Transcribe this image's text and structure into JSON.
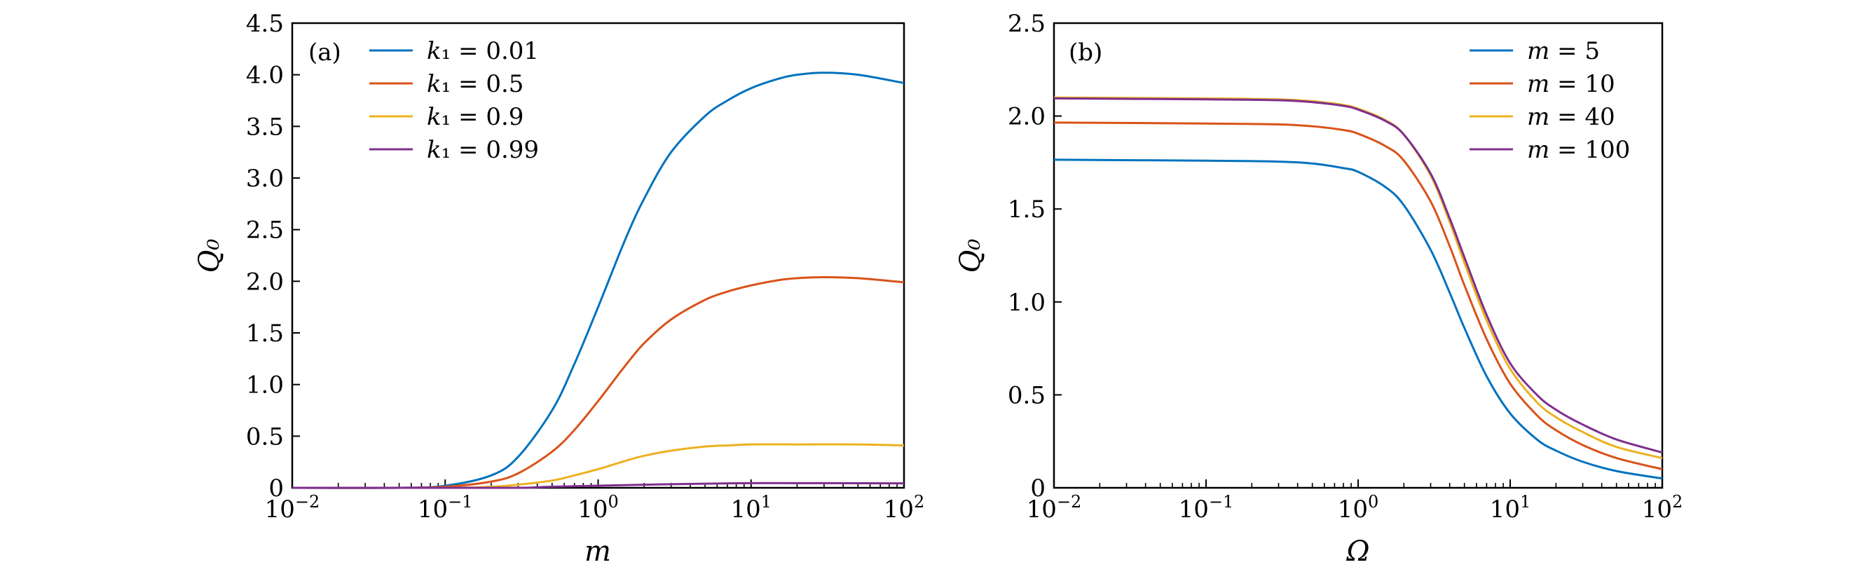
{
  "chart_data": [
    {
      "type": "line",
      "panel_tag": "(a)",
      "xscale": "log",
      "xlim": [
        0.01,
        100
      ],
      "ylim": [
        0,
        4.5
      ],
      "xlabel": "m",
      "ylabel": "Q₀",
      "x_ticks": [
        0.01,
        0.1,
        1,
        10,
        100
      ],
      "x_tick_labels": [
        {
          "base": "10",
          "exp": "−2"
        },
        {
          "base": "10",
          "exp": "−1"
        },
        {
          "base": "10",
          "exp": "0"
        },
        {
          "base": "10",
          "exp": "1"
        },
        {
          "base": "10",
          "exp": "2"
        }
      ],
      "y_ticks": [
        0,
        0.5,
        1.0,
        1.5,
        2.0,
        2.5,
        3.0,
        3.5,
        4.0,
        4.5
      ],
      "y_tick_labels": [
        "0",
        "0.5",
        "1.0",
        "1.5",
        "2.0",
        "2.5",
        "3.0",
        "3.5",
        "4.0",
        "4.5"
      ],
      "legend_position": "top-left",
      "series": [
        {
          "name": "k₁ = 0.01",
          "color": "#0072bd",
          "x": [
            0.01,
            0.05,
            0.1,
            0.2,
            0.3,
            0.5,
            0.7,
            1,
            1.5,
            2,
            3,
            5,
            7,
            10,
            15,
            20,
            30,
            50,
            100
          ],
          "y": [
            0.0,
            0.0,
            0.02,
            0.12,
            0.3,
            0.75,
            1.2,
            1.75,
            2.4,
            2.8,
            3.25,
            3.6,
            3.75,
            3.87,
            3.96,
            4.0,
            4.02,
            4.0,
            3.92
          ]
        },
        {
          "name": "k₁ = 0.5",
          "color": "#d95319",
          "x": [
            0.01,
            0.05,
            0.1,
            0.2,
            0.3,
            0.5,
            0.7,
            1,
            1.5,
            2,
            3,
            5,
            7,
            10,
            15,
            20,
            30,
            50,
            100
          ],
          "y": [
            0.0,
            0.0,
            0.01,
            0.06,
            0.14,
            0.35,
            0.56,
            0.84,
            1.18,
            1.4,
            1.63,
            1.82,
            1.9,
            1.96,
            2.01,
            2.03,
            2.04,
            2.03,
            1.99
          ]
        },
        {
          "name": "k₁ = 0.9",
          "color": "#edb120",
          "x": [
            0.01,
            0.1,
            0.2,
            0.3,
            0.5,
            0.7,
            1,
            1.5,
            2,
            3,
            5,
            7,
            10,
            20,
            50,
            100
          ],
          "y": [
            0.0,
            0.0,
            0.01,
            0.03,
            0.07,
            0.12,
            0.18,
            0.26,
            0.31,
            0.36,
            0.4,
            0.41,
            0.42,
            0.42,
            0.42,
            0.41
          ]
        },
        {
          "name": "k₁ = 0.99",
          "color": "#7e2f8e",
          "x": [
            0.01,
            0.1,
            0.3,
            0.5,
            1,
            2,
            3,
            5,
            10,
            20,
            50,
            100
          ],
          "y": [
            0.0,
            0.0,
            0.0,
            0.01,
            0.02,
            0.03,
            0.035,
            0.04,
            0.045,
            0.045,
            0.044,
            0.043
          ]
        }
      ]
    },
    {
      "type": "line",
      "panel_tag": "(b)",
      "xscale": "log",
      "xlim": [
        0.01,
        100
      ],
      "ylim": [
        0,
        2.5
      ],
      "xlabel": "Ω",
      "ylabel": "Q₀",
      "x_ticks": [
        0.01,
        0.1,
        1,
        10,
        100
      ],
      "x_tick_labels": [
        {
          "base": "10",
          "exp": "−2"
        },
        {
          "base": "10",
          "exp": "−1"
        },
        {
          "base": "10",
          "exp": "0"
        },
        {
          "base": "10",
          "exp": "1"
        },
        {
          "base": "10",
          "exp": "2"
        }
      ],
      "y_ticks": [
        0,
        0.5,
        1.0,
        1.5,
        2.0,
        2.5
      ],
      "y_tick_labels": [
        "0",
        "0.5",
        "1.0",
        "1.5",
        "2.0",
        "2.5"
      ],
      "legend_position": "top-right",
      "series": [
        {
          "name": "m = 5",
          "color": "#0072bd",
          "x": [
            0.01,
            0.1,
            0.3,
            0.5,
            0.8,
            1,
            1.5,
            2,
            3,
            4,
            5,
            7,
            10,
            15,
            20,
            30,
            50,
            100
          ],
          "y": [
            1.765,
            1.76,
            1.755,
            1.745,
            1.72,
            1.7,
            1.62,
            1.52,
            1.28,
            1.05,
            0.86,
            0.6,
            0.4,
            0.26,
            0.2,
            0.14,
            0.09,
            0.05
          ]
        },
        {
          "name": "m = 10",
          "color": "#d95319",
          "x": [
            0.01,
            0.1,
            0.3,
            0.5,
            0.8,
            1,
            1.5,
            2,
            3,
            4,
            5,
            7,
            10,
            15,
            20,
            30,
            50,
            100
          ],
          "y": [
            1.965,
            1.96,
            1.955,
            1.945,
            1.925,
            1.905,
            1.84,
            1.76,
            1.54,
            1.3,
            1.09,
            0.8,
            0.56,
            0.39,
            0.31,
            0.23,
            0.16,
            0.1
          ]
        },
        {
          "name": "m = 40",
          "color": "#edb120",
          "x": [
            0.01,
            0.1,
            0.3,
            0.5,
            0.8,
            1,
            1.5,
            2,
            3,
            4,
            5,
            7,
            10,
            15,
            20,
            30,
            50,
            100
          ],
          "y": [
            2.1,
            2.095,
            2.09,
            2.08,
            2.06,
            2.04,
            1.98,
            1.9,
            1.68,
            1.43,
            1.21,
            0.9,
            0.64,
            0.46,
            0.38,
            0.3,
            0.22,
            0.16
          ]
        },
        {
          "name": "m = 100",
          "color": "#7e2f8e",
          "x": [
            0.01,
            0.1,
            0.3,
            0.5,
            0.8,
            1,
            1.5,
            2,
            3,
            4,
            5,
            7,
            10,
            15,
            20,
            30,
            50,
            100
          ],
          "y": [
            2.095,
            2.09,
            2.085,
            2.075,
            2.055,
            2.035,
            1.975,
            1.9,
            1.69,
            1.45,
            1.24,
            0.93,
            0.67,
            0.5,
            0.42,
            0.34,
            0.26,
            0.19
          ]
        }
      ]
    }
  ]
}
